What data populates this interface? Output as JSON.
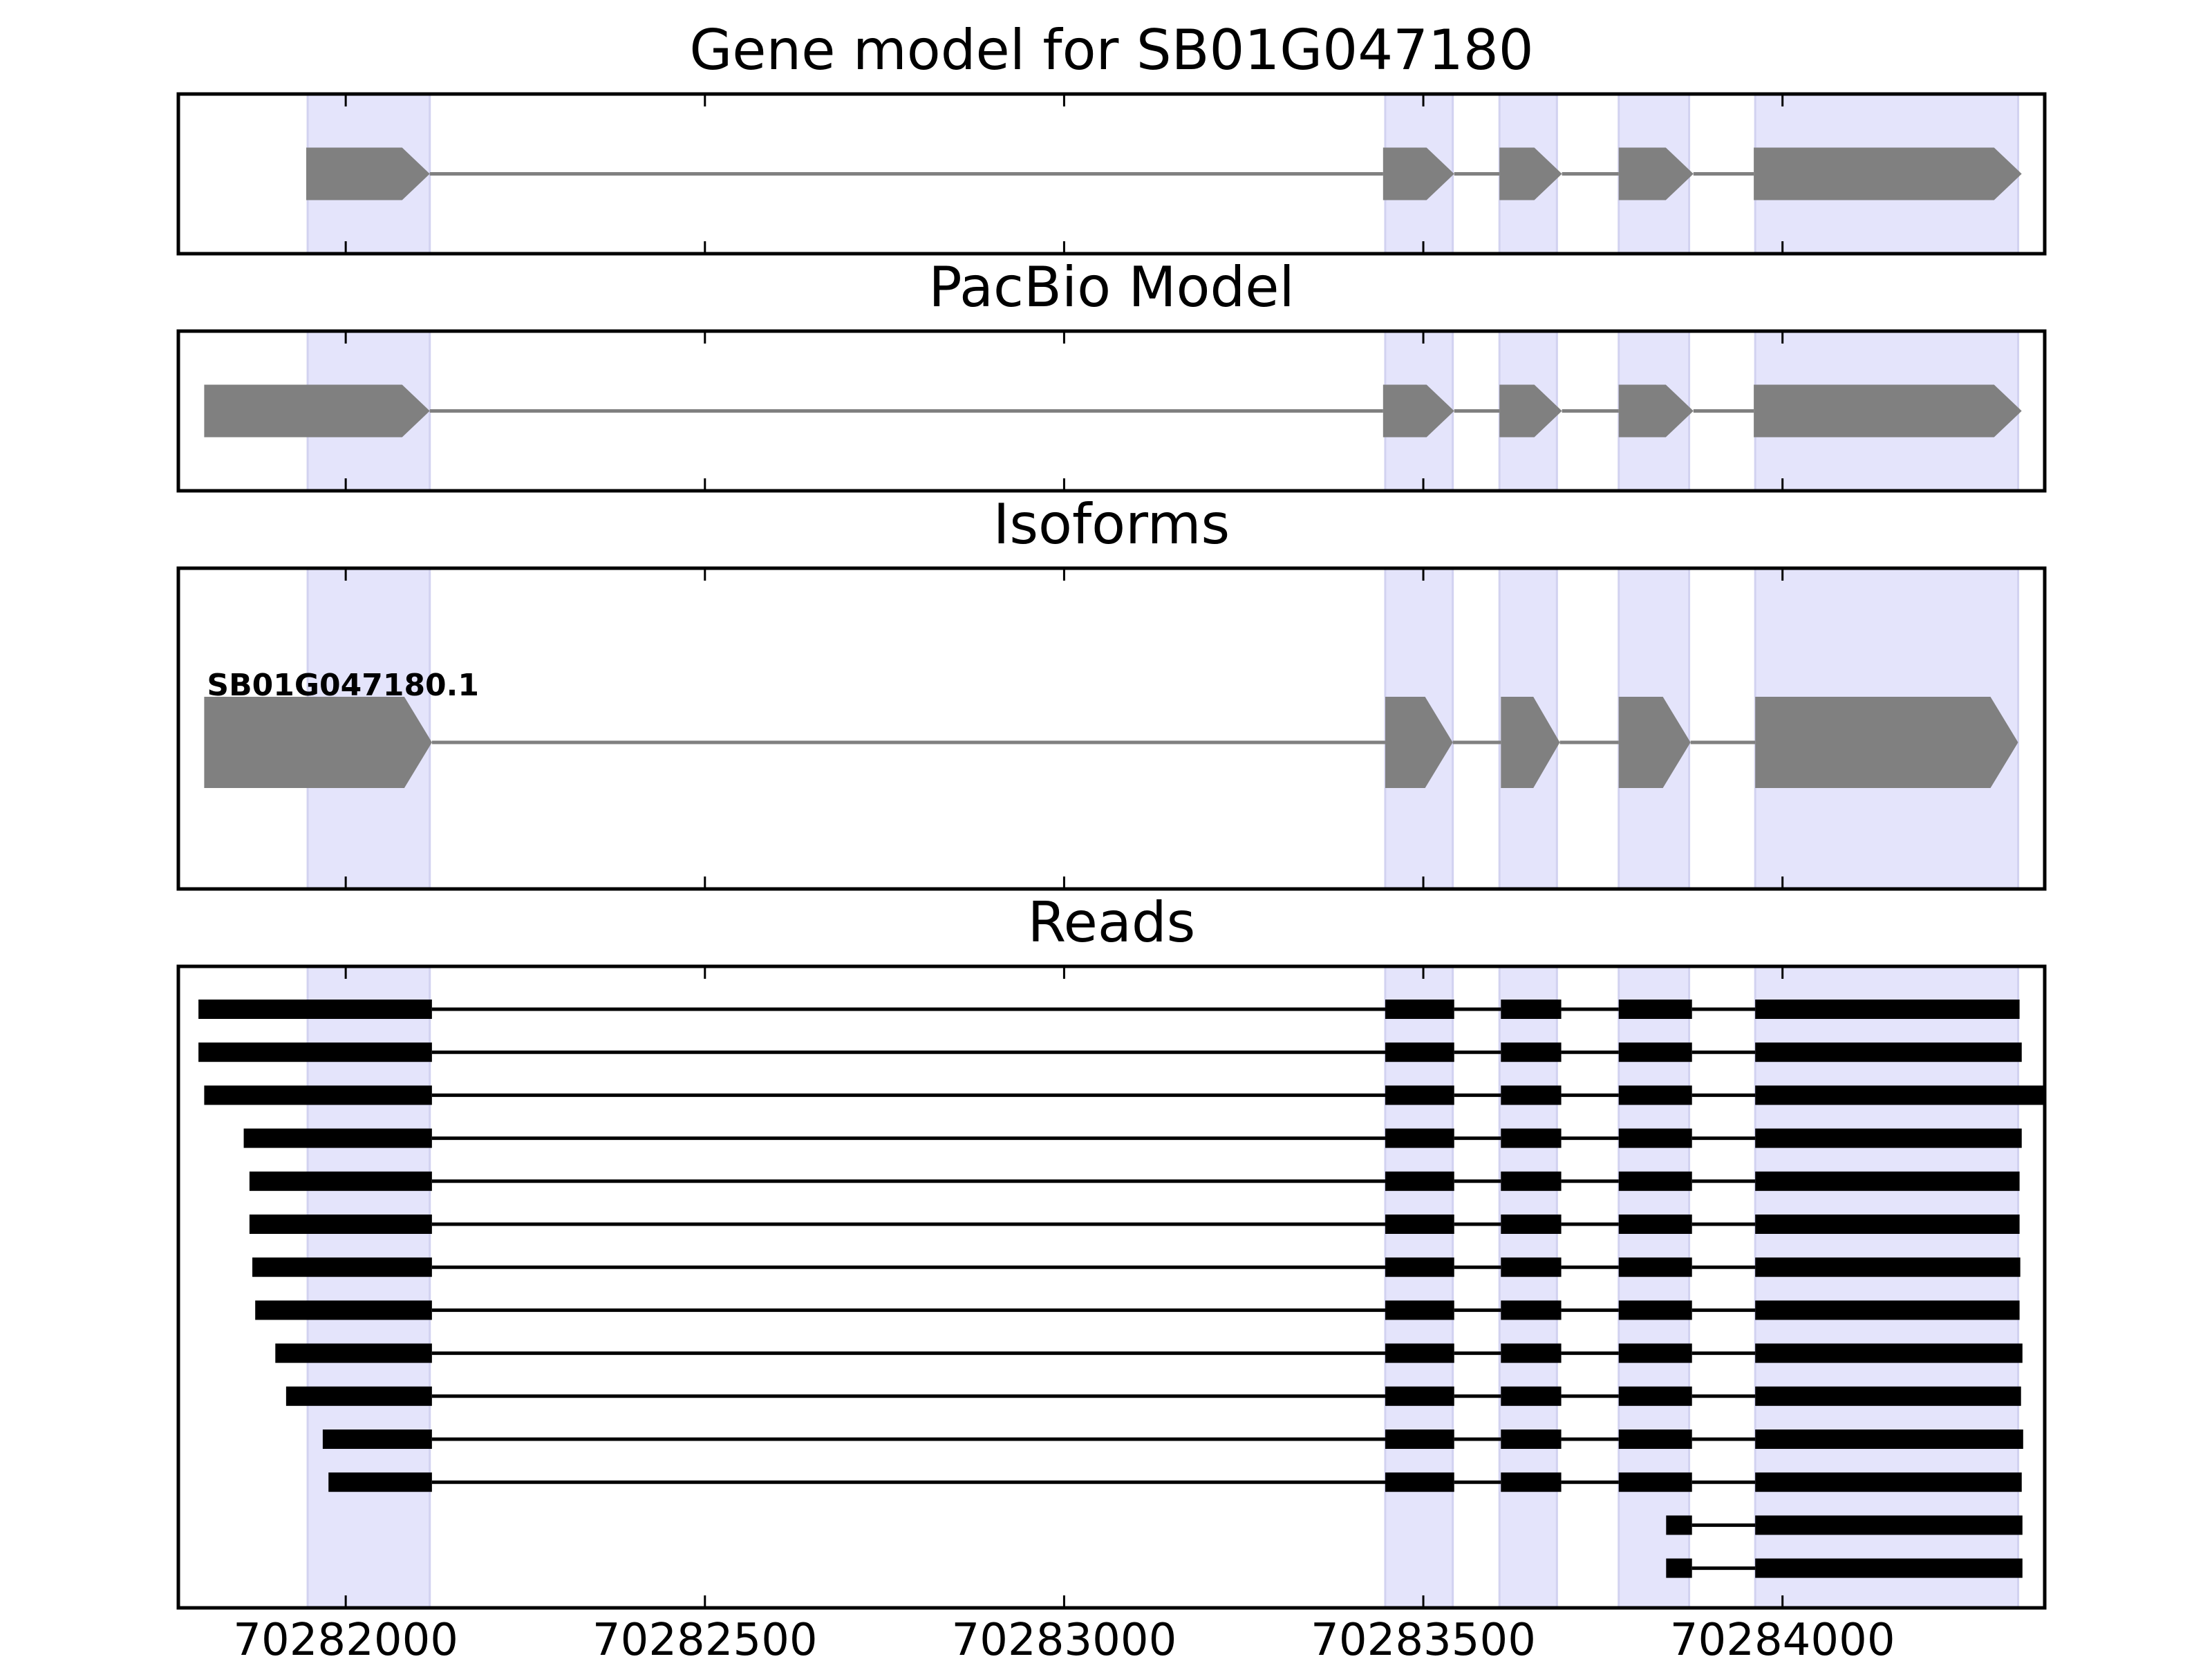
{
  "chart_data": {
    "type": "gene-structure",
    "x_axis": {
      "ticks": [
        70282000,
        70282500,
        70283000,
        70283500,
        70284000
      ],
      "tick_labels": [
        "70282000",
        "70282500",
        "70283000",
        "70283500",
        "70284000"
      ],
      "range": [
        70281767,
        70284365
      ]
    },
    "highlight_color": "#e4e4fb",
    "feature_color": "#808080",
    "read_color": "#000000",
    "highlight_regions": [
      [
        70281947,
        70282117
      ],
      [
        70283447,
        70283541
      ],
      [
        70283606,
        70283686
      ],
      [
        70283772,
        70283870
      ],
      [
        70283962,
        70284328
      ]
    ],
    "panels": [
      {
        "title": "Gene model for SB01G047180",
        "type": "gene",
        "exons": [
          [
            70281945,
            70282117
          ],
          [
            70283444,
            70283543
          ],
          [
            70283606,
            70283693
          ],
          [
            70283772,
            70283876
          ],
          [
            70283960,
            70284333
          ]
        ],
        "strand": "+"
      },
      {
        "title": "PacBio Model",
        "type": "gene",
        "exons": [
          [
            70281803,
            70282117
          ],
          [
            70283444,
            70283543
          ],
          [
            70283606,
            70283693
          ],
          [
            70283772,
            70283876
          ],
          [
            70283960,
            70284333
          ]
        ],
        "strand": "+"
      },
      {
        "title": "Isoforms",
        "type": "isoforms",
        "isoforms": [
          {
            "name": "SB01G047180.1",
            "exons": [
              [
                70281803,
                70282120
              ],
              [
                70283447,
                70283541
              ],
              [
                70283608,
                70283690
              ],
              [
                70283772,
                70283872
              ],
              [
                70283962,
                70284328
              ]
            ],
            "strand": "+"
          }
        ]
      },
      {
        "title": "Reads",
        "type": "reads",
        "reads": [
          [
            [
              70281795,
              70282120
            ],
            [
              70283447,
              70283543
            ],
            [
              70283608,
              70283692
            ],
            [
              70283772,
              70283874
            ],
            [
              70283962,
              70284330
            ]
          ],
          [
            [
              70281795,
              70282120
            ],
            [
              70283447,
              70283543
            ],
            [
              70283608,
              70283692
            ],
            [
              70283772,
              70283874
            ],
            [
              70283962,
              70284333
            ]
          ],
          [
            [
              70281803,
              70282120
            ],
            [
              70283447,
              70283543
            ],
            [
              70283608,
              70283692
            ],
            [
              70283772,
              70283874
            ],
            [
              70283962,
              70284365
            ]
          ],
          [
            [
              70281858,
              70282120
            ],
            [
              70283447,
              70283543
            ],
            [
              70283608,
              70283692
            ],
            [
              70283772,
              70283874
            ],
            [
              70283962,
              70284333
            ]
          ],
          [
            [
              70281866,
              70282120
            ],
            [
              70283447,
              70283543
            ],
            [
              70283608,
              70283692
            ],
            [
              70283772,
              70283874
            ],
            [
              70283962,
              70284330
            ]
          ],
          [
            [
              70281866,
              70282120
            ],
            [
              70283447,
              70283543
            ],
            [
              70283608,
              70283692
            ],
            [
              70283772,
              70283874
            ],
            [
              70283962,
              70284330
            ]
          ],
          [
            [
              70281870,
              70282120
            ],
            [
              70283447,
              70283543
            ],
            [
              70283608,
              70283692
            ],
            [
              70283772,
              70283874
            ],
            [
              70283962,
              70284331
            ]
          ],
          [
            [
              70281874,
              70282120
            ],
            [
              70283447,
              70283543
            ],
            [
              70283608,
              70283692
            ],
            [
              70283772,
              70283874
            ],
            [
              70283962,
              70284330
            ]
          ],
          [
            [
              70281902,
              70282120
            ],
            [
              70283447,
              70283543
            ],
            [
              70283608,
              70283692
            ],
            [
              70283772,
              70283874
            ],
            [
              70283962,
              70284334
            ]
          ],
          [
            [
              70281917,
              70282120
            ],
            [
              70283447,
              70283543
            ],
            [
              70283608,
              70283692
            ],
            [
              70283772,
              70283874
            ],
            [
              70283962,
              70284332
            ]
          ],
          [
            [
              70281968,
              70282120
            ],
            [
              70283447,
              70283543
            ],
            [
              70283608,
              70283692
            ],
            [
              70283772,
              70283874
            ],
            [
              70283962,
              70284335
            ]
          ],
          [
            [
              70281976,
              70282120
            ],
            [
              70283447,
              70283543
            ],
            [
              70283608,
              70283692
            ],
            [
              70283772,
              70283874
            ],
            [
              70283962,
              70284333
            ]
          ],
          [
            [
              70283838,
              70283874
            ],
            [
              70283962,
              70284334
            ]
          ],
          [
            [
              70283838,
              70283874
            ],
            [
              70283962,
              70284334
            ]
          ]
        ]
      }
    ]
  }
}
